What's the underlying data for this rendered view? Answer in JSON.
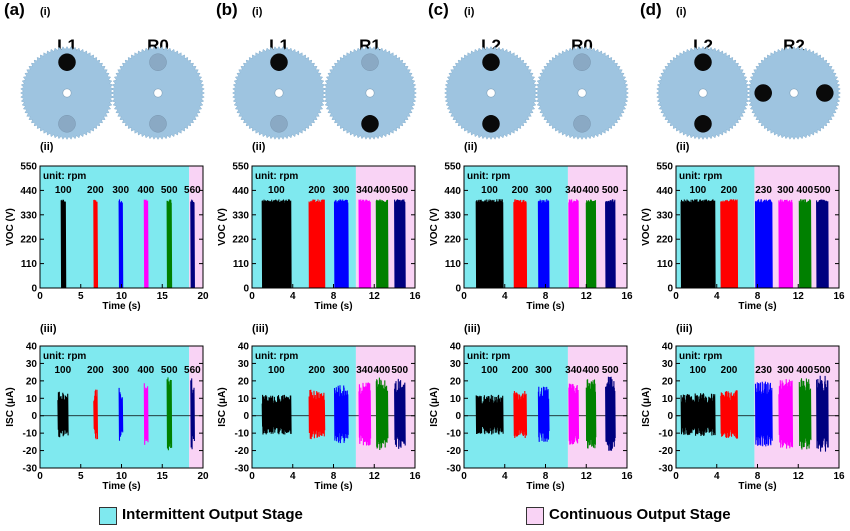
{
  "colors": {
    "intermittent": "#7fe9ef",
    "continuous": "#f9d3f5",
    "wheel": "#9ec4e0",
    "magnet_active": "#0a0a0a",
    "magnet_inactive": "#8aa9c4",
    "series": [
      "#000000",
      "#ff0000",
      "#0000ff",
      "#ff00ff",
      "#008000",
      "#000080"
    ]
  },
  "legend": {
    "intermittent": "Intermittent Output Stage",
    "continuous": "Continuous Output Stage"
  },
  "panels": [
    {
      "letter": "(a)",
      "sub_i": "(i)",
      "sub_ii": "(ii)",
      "sub_iii": "(iii)",
      "left_label": "L1",
      "right_label": "R0",
      "left_magnets": [
        {
          "angle": 0,
          "active": true
        },
        {
          "angle": 180,
          "active": false
        }
      ],
      "right_magnets": [
        {
          "angle": 0,
          "active": false
        },
        {
          "angle": 180,
          "active": false
        }
      ]
    },
    {
      "letter": "(b)",
      "sub_i": "(i)",
      "sub_ii": "(ii)",
      "sub_iii": "(iii)",
      "left_label": "L1",
      "right_label": "R1",
      "left_magnets": [
        {
          "angle": 0,
          "active": true
        },
        {
          "angle": 180,
          "active": false
        }
      ],
      "right_magnets": [
        {
          "angle": 0,
          "active": false
        },
        {
          "angle": 180,
          "active": true
        }
      ]
    },
    {
      "letter": "(c)",
      "sub_i": "(i)",
      "sub_ii": "(ii)",
      "sub_iii": "(iii)",
      "left_label": "L2",
      "right_label": "R0",
      "left_magnets": [
        {
          "angle": 0,
          "active": true
        },
        {
          "angle": 180,
          "active": true
        }
      ],
      "right_magnets": [
        {
          "angle": 0,
          "active": false
        },
        {
          "angle": 180,
          "active": false
        }
      ]
    },
    {
      "letter": "(d)",
      "sub_i": "(i)",
      "sub_ii": "(ii)",
      "sub_iii": "(iii)",
      "left_label": "L2",
      "right_label": "R2",
      "left_magnets": [
        {
          "angle": 0,
          "active": true
        },
        {
          "angle": 180,
          "active": true
        }
      ],
      "right_magnets": [
        {
          "angle": 90,
          "active": true
        },
        {
          "angle": 270,
          "active": true
        }
      ]
    }
  ],
  "chart_data": [
    {
      "panel": "a",
      "type": "line",
      "quantity": "Voc",
      "ylabel": "VOC (V)",
      "xlabel": "Time (s)",
      "xlim": [
        0,
        20
      ],
      "xticks": [
        0,
        5,
        10,
        15,
        20
      ],
      "ylim": [
        0,
        550
      ],
      "yticks": [
        0,
        110,
        220,
        330,
        440,
        550
      ],
      "unit_note": "unit: rpm",
      "boundary": 18.3,
      "bursts": [
        {
          "label": "100",
          "start": 2.6,
          "end": 3.1,
          "peak": 400
        },
        {
          "label": "200",
          "start": 6.6,
          "end": 7.0,
          "peak": 400
        },
        {
          "label": "300",
          "start": 9.7,
          "end": 10.1,
          "peak": 400
        },
        {
          "label": "400",
          "start": 12.8,
          "end": 13.2,
          "peak": 400
        },
        {
          "label": "500",
          "start": 15.6,
          "end": 16.1,
          "peak": 400
        },
        {
          "label": "560",
          "start": 18.5,
          "end": 18.9,
          "peak": 400
        }
      ]
    },
    {
      "panel": "b",
      "type": "line",
      "quantity": "Voc",
      "ylabel": "VOC (V)",
      "xlabel": "Time (s)",
      "xlim": [
        0,
        16
      ],
      "xticks": [
        0,
        4,
        8,
        12,
        16
      ],
      "ylim": [
        0,
        550
      ],
      "yticks": [
        0,
        110,
        220,
        330,
        440,
        550
      ],
      "unit_note": "unit: rpm",
      "boundary": 10.2,
      "bursts": [
        {
          "label": "100",
          "start": 1.0,
          "end": 3.8,
          "peak": 400
        },
        {
          "label": "200",
          "start": 5.6,
          "end": 7.1,
          "peak": 400
        },
        {
          "label": "300",
          "start": 8.1,
          "end": 9.4,
          "peak": 400
        },
        {
          "label": "340",
          "start": 10.5,
          "end": 11.6,
          "peak": 400
        },
        {
          "label": "400",
          "start": 12.2,
          "end": 13.3,
          "peak": 400
        },
        {
          "label": "500",
          "start": 14.0,
          "end": 15.0,
          "peak": 400
        }
      ]
    },
    {
      "panel": "c",
      "type": "line",
      "quantity": "Voc",
      "ylabel": "VOC (V)",
      "xlabel": "Time (s)",
      "xlim": [
        0,
        16
      ],
      "xticks": [
        0,
        4,
        8,
        12,
        16
      ],
      "ylim": [
        0,
        550
      ],
      "yticks": [
        0,
        110,
        220,
        330,
        440,
        550
      ],
      "unit_note": "unit: rpm",
      "boundary": 10.2,
      "bursts": [
        {
          "label": "100",
          "start": 1.2,
          "end": 3.8,
          "peak": 400
        },
        {
          "label": "200",
          "start": 4.9,
          "end": 6.1,
          "peak": 400
        },
        {
          "label": "300",
          "start": 7.3,
          "end": 8.3,
          "peak": 400
        },
        {
          "label": "340",
          "start": 10.3,
          "end": 11.2,
          "peak": 400
        },
        {
          "label": "400",
          "start": 12.0,
          "end": 12.9,
          "peak": 400
        },
        {
          "label": "500",
          "start": 13.9,
          "end": 14.8,
          "peak": 400
        }
      ]
    },
    {
      "panel": "d",
      "type": "line",
      "quantity": "Voc",
      "ylabel": "VOC (V)",
      "xlabel": "Time (s)",
      "xlim": [
        0,
        16
      ],
      "xticks": [
        0,
        4,
        8,
        12,
        16
      ],
      "ylim": [
        0,
        550
      ],
      "yticks": [
        0,
        110,
        220,
        330,
        440,
        550
      ],
      "unit_note": "unit: rpm",
      "boundary": 7.7,
      "bursts": [
        {
          "label": "100",
          "start": 0.5,
          "end": 3.8,
          "peak": 400
        },
        {
          "label": "200",
          "start": 4.4,
          "end": 6.0,
          "peak": 400
        },
        {
          "label": "230",
          "start": 7.8,
          "end": 9.4,
          "peak": 400
        },
        {
          "label": "300",
          "start": 10.1,
          "end": 11.4,
          "peak": 400
        },
        {
          "label": "400",
          "start": 12.1,
          "end": 13.2,
          "peak": 400
        },
        {
          "label": "500",
          "start": 13.8,
          "end": 14.9,
          "peak": 400
        }
      ]
    },
    {
      "panel": "a",
      "type": "line",
      "quantity": "Isc",
      "ylabel": "ISC (μA)",
      "xlabel": "Time (s)",
      "xlim": [
        0,
        20
      ],
      "xticks": [
        0,
        5,
        10,
        15,
        20
      ],
      "ylim": [
        -30,
        40
      ],
      "yticks": [
        -30,
        -20,
        -10,
        0,
        10,
        20,
        30,
        40
      ],
      "unit_note": "unit: rpm",
      "boundary": 18.3,
      "bursts": [
        {
          "label": "100",
          "start": 2.2,
          "end": 3.4,
          "peak": 14
        },
        {
          "label": "200",
          "start": 6.6,
          "end": 7.0,
          "peak": 15
        },
        {
          "label": "300",
          "start": 9.7,
          "end": 10.1,
          "peak": 17
        },
        {
          "label": "400",
          "start": 12.8,
          "end": 13.2,
          "peak": 19
        },
        {
          "label": "500",
          "start": 15.6,
          "end": 16.1,
          "peak": 22
        },
        {
          "label": "560",
          "start": 18.5,
          "end": 18.9,
          "peak": 22
        }
      ]
    },
    {
      "panel": "b",
      "type": "line",
      "quantity": "Isc",
      "ylabel": "ISC (μA)",
      "xlabel": "Time (s)",
      "xlim": [
        0,
        16
      ],
      "xticks": [
        0,
        4,
        8,
        12,
        16
      ],
      "ylim": [
        -30,
        40
      ],
      "yticks": [
        -30,
        -20,
        -10,
        0,
        10,
        20,
        30,
        40
      ],
      "unit_note": "unit: rpm",
      "boundary": 10.2,
      "bursts": [
        {
          "label": "100",
          "start": 1.0,
          "end": 3.8,
          "peak": 12
        },
        {
          "label": "200",
          "start": 5.6,
          "end": 7.1,
          "peak": 15
        },
        {
          "label": "300",
          "start": 8.1,
          "end": 9.4,
          "peak": 18
        },
        {
          "label": "340",
          "start": 10.5,
          "end": 11.6,
          "peak": 20
        },
        {
          "label": "400",
          "start": 12.2,
          "end": 13.3,
          "peak": 22
        },
        {
          "label": "500",
          "start": 14.0,
          "end": 15.0,
          "peak": 23
        }
      ]
    },
    {
      "panel": "c",
      "type": "line",
      "quantity": "Isc",
      "ylabel": "ISC (μA)",
      "xlabel": "Time (s)",
      "xlim": [
        0,
        16
      ],
      "xticks": [
        0,
        4,
        8,
        12,
        16
      ],
      "ylim": [
        -30,
        40
      ],
      "yticks": [
        -30,
        -20,
        -10,
        0,
        10,
        20,
        30,
        40
      ],
      "unit_note": "unit: rpm",
      "boundary": 10.2,
      "bursts": [
        {
          "label": "100",
          "start": 1.2,
          "end": 3.8,
          "peak": 12
        },
        {
          "label": "200",
          "start": 4.9,
          "end": 6.1,
          "peak": 15
        },
        {
          "label": "300",
          "start": 7.3,
          "end": 8.3,
          "peak": 17
        },
        {
          "label": "340",
          "start": 10.3,
          "end": 11.2,
          "peak": 19
        },
        {
          "label": "400",
          "start": 12.0,
          "end": 12.9,
          "peak": 21
        },
        {
          "label": "500",
          "start": 13.9,
          "end": 14.8,
          "peak": 23
        }
      ]
    },
    {
      "panel": "d",
      "type": "line",
      "quantity": "Isc",
      "ylabel": "ISC (μA)",
      "xlabel": "Time (s)",
      "xlim": [
        0,
        16
      ],
      "xticks": [
        0,
        4,
        8,
        12,
        16
      ],
      "ylim": [
        -30,
        40
      ],
      "yticks": [
        -30,
        -20,
        -10,
        0,
        10,
        20,
        30,
        40
      ],
      "unit_note": "unit: rpm",
      "boundary": 7.7,
      "bursts": [
        {
          "label": "100",
          "start": 0.5,
          "end": 3.8,
          "peak": 13
        },
        {
          "label": "200",
          "start": 4.4,
          "end": 6.0,
          "peak": 15
        },
        {
          "label": "230",
          "start": 7.8,
          "end": 9.4,
          "peak": 20
        },
        {
          "label": "300",
          "start": 10.1,
          "end": 11.4,
          "peak": 21
        },
        {
          "label": "400",
          "start": 12.1,
          "end": 13.2,
          "peak": 22
        },
        {
          "label": "500",
          "start": 13.8,
          "end": 14.9,
          "peak": 23
        }
      ]
    }
  ]
}
